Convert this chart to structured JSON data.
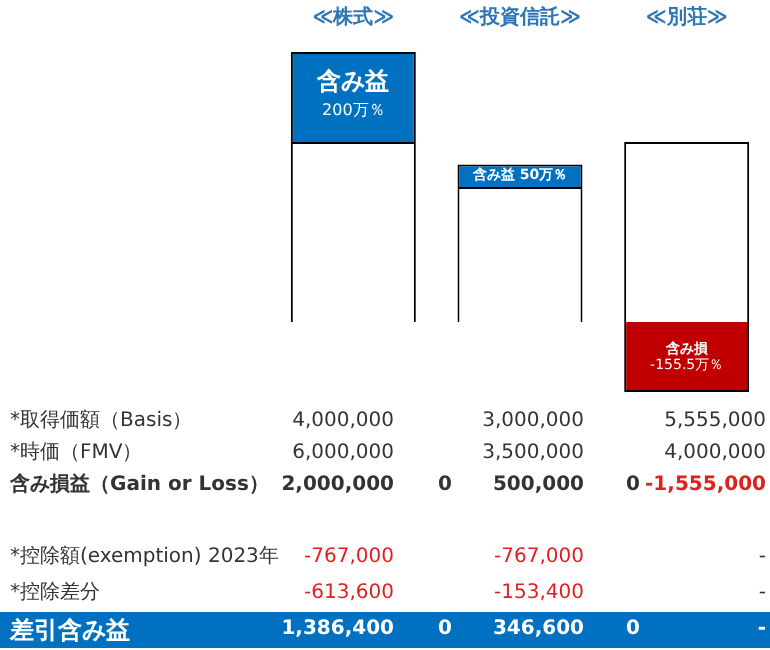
{
  "chart_data": {
    "type": "bar",
    "stacked": true,
    "tick_labels": "x",
    "categories": [
      "≪株式≫",
      "≪投資信託≫",
      "≪別荘≫"
    ],
    "series": [
      {
        "color": "#ffffff",
        "values": [
          400,
          300,
          400
        ]
      },
      {
        "colors": [
          "#0070c0",
          "#0070c0",
          "#c00000"
        ],
        "values": [
          200,
          50,
          -155.5
        ],
        "value_labels": [
          "含み益 200万％",
          "含み益 50万％",
          "含み損 -155.5万％"
        ]
      }
    ],
    "annotations": [
      "*取得価額（Basis）",
      "4,000,000",
      "3,000,000",
      "5,555,000",
      "*時価（FMV）",
      "6,000,000",
      "3,500,000",
      "4,000,000",
      "含み損益（Gain or Loss）",
      "2,000,000",
      "0",
      "500,000",
      "0",
      "-1,555,000",
      "*控除額(exemption) 2023年",
      "-767,000",
      "-767,000",
      "-",
      "*控除差分",
      "-613,600",
      "-153,400",
      "-",
      "差引含み益",
      "1,386,400",
      "0",
      "346,600",
      "0",
      "-"
    ]
  }
}
